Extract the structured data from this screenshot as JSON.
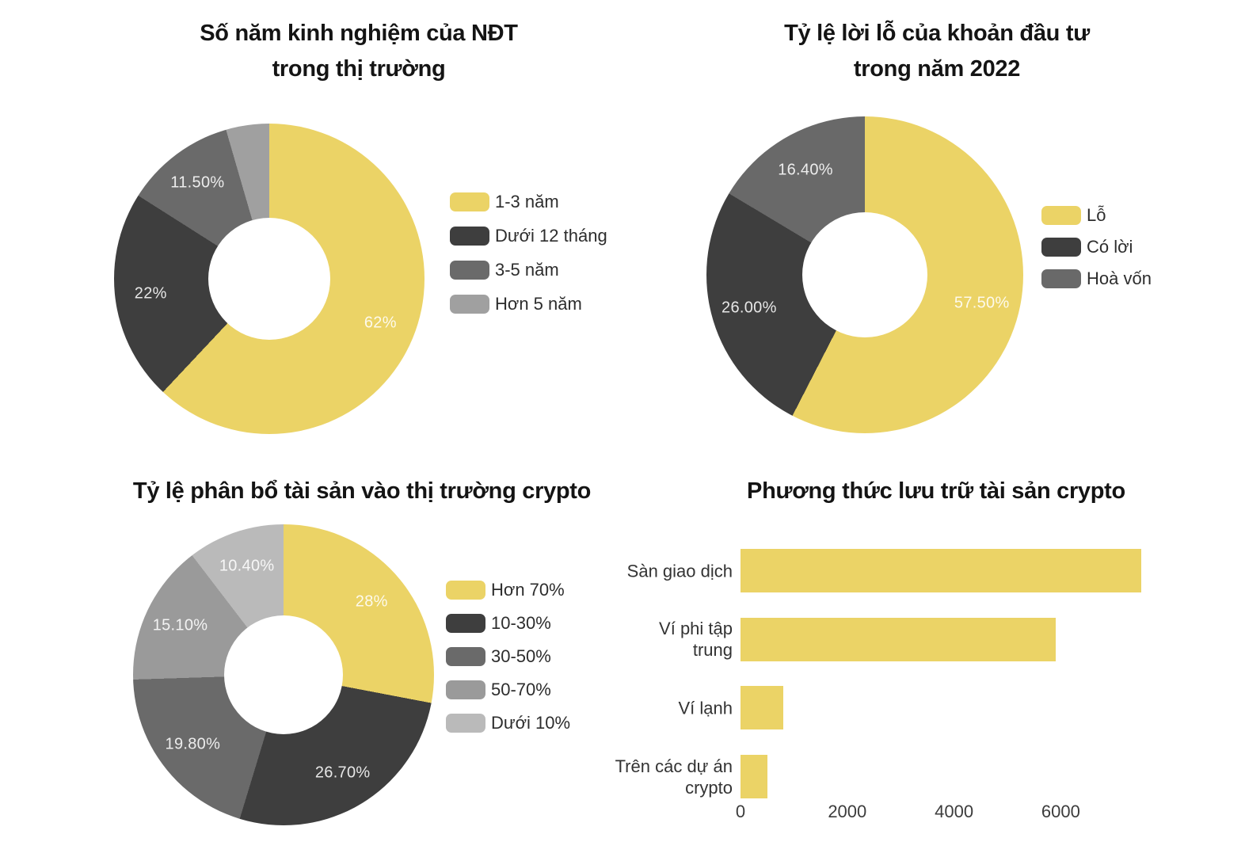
{
  "page": {
    "background": "#ffffff"
  },
  "chart_data": [
    {
      "id": "experience-years",
      "type": "donut",
      "title": "Số năm kinh nghiệm của NĐT trong thị trường",
      "title_lines": [
        "Số năm kinh nghiệm của NĐT",
        "trong thị trường"
      ],
      "legend_position": "right",
      "slices": [
        {
          "label": "1-3 năm",
          "value": 62,
          "value_label": "62%",
          "color": "#ebd366"
        },
        {
          "label": "Dưới 12 tháng",
          "value": 22,
          "value_label": "22%",
          "color": "#3e3e3e"
        },
        {
          "label": "3-5 năm",
          "value": 11.5,
          "value_label": "11.50%",
          "color": "#6a6a6a"
        },
        {
          "label": "Hơn 5 năm",
          "value": 4.5,
          "value_label": "",
          "color": "#a0a0a0"
        }
      ]
    },
    {
      "id": "profit-loss-2022",
      "type": "donut",
      "title": "Tỷ lệ lời lỗ của khoản đầu tư trong năm 2022",
      "title_lines": [
        "Tỷ lệ lời lỗ của khoản đầu tư",
        "trong năm 2022"
      ],
      "legend_position": "right",
      "slices": [
        {
          "label": "Lỗ",
          "value": 57.5,
          "value_label": "57.50%",
          "color": "#ebd366"
        },
        {
          "label": "Có lời",
          "value": 26,
          "value_label": "26.00%",
          "color": "#3e3e3e"
        },
        {
          "label": "Hoà vốn",
          "value": 16.4,
          "value_label": "16.40%",
          "color": "#696969"
        }
      ]
    },
    {
      "id": "asset-allocation",
      "type": "donut",
      "title": "Tỷ lệ phân bổ tài sản vào thị trường crypto",
      "title_lines": [
        "Tỷ lệ phân bổ tài sản vào thị trường crypto"
      ],
      "legend_position": "right",
      "slices": [
        {
          "label": "Hơn 70%",
          "value": 28,
          "value_label": "28%",
          "color": "#ebd366"
        },
        {
          "label": "10-30%",
          "value": 26.7,
          "value_label": "26.70%",
          "color": "#3e3e3e"
        },
        {
          "label": "30-50%",
          "value": 19.8,
          "value_label": "19.80%",
          "color": "#6a6a6a"
        },
        {
          "label": "50-70%",
          "value": 15.1,
          "value_label": "15.10%",
          "color": "#9a9a9a"
        },
        {
          "label": "Dưới 10%",
          "value": 10.4,
          "value_label": "10.40%",
          "color": "#bababa"
        }
      ]
    },
    {
      "id": "storage-methods",
      "type": "bar",
      "orientation": "horizontal",
      "title": "Phương thức lưu trữ tài sản crypto",
      "title_lines": [
        "Phương thức lưu trữ tài sản crypto"
      ],
      "bar_color": "#ebd366",
      "categories": [
        "Sàn giao dịch",
        "Ví phi tập trung",
        "Ví lạnh",
        "Trên các dự án crypto"
      ],
      "values": [
        7500,
        5900,
        800,
        500
      ],
      "x_ticks": [
        "0",
        "2000",
        "4000",
        "6000"
      ],
      "x_tick_values": [
        0,
        2000,
        4000,
        6000
      ],
      "xlim": [
        0,
        7800
      ],
      "grid": false
    }
  ]
}
